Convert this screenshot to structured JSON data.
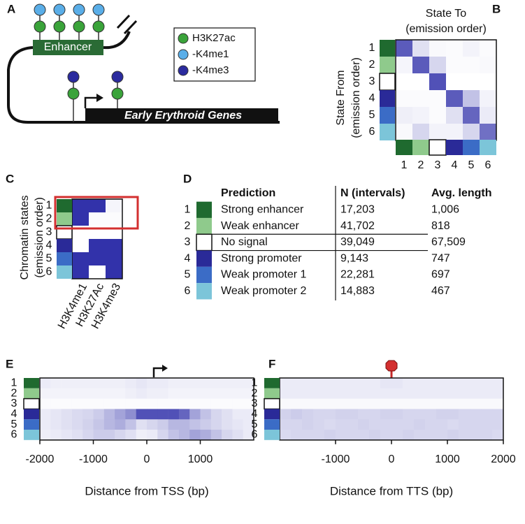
{
  "panel_labels": [
    "A",
    "B",
    "C",
    "D",
    "E",
    "F"
  ],
  "state_colors": [
    "#1f6a2f",
    "#8fca8c",
    "#ffffff",
    "#2a2a98",
    "#3b6cc6",
    "#7cc5d9"
  ],
  "states": [
    "1",
    "2",
    "3",
    "4",
    "5",
    "6"
  ],
  "panel_a": {
    "enhancer": "Enhancer",
    "genes": "Early Erythroid Genes",
    "legend": [
      "H3K27ac",
      "-K4me1",
      "-K4me3"
    ]
  },
  "panel_b": {
    "title": [
      "State To",
      "(emission order)"
    ],
    "ylabel": [
      "State From",
      "(emission order)"
    ],
    "matrix": [
      [
        0.8,
        0.15,
        0.03,
        0.02,
        0.06,
        0.02
      ],
      [
        0.05,
        0.8,
        0.2,
        0.02,
        0.02,
        0.03
      ],
      [
        0.0,
        0.0,
        0.85,
        0.0,
        0.0,
        0.0
      ],
      [
        0.02,
        0.02,
        0.02,
        0.8,
        0.3,
        0.06
      ],
      [
        0.08,
        0.06,
        0.02,
        0.15,
        0.75,
        0.1
      ],
      [
        0.03,
        0.2,
        0.06,
        0.06,
        0.2,
        0.7
      ]
    ]
  },
  "panel_c": {
    "ylabel": [
      "Chromatin states",
      "(emission order)"
    ],
    "marks": [
      "H3K4me1",
      "H3K27Ac",
      "H3K4me3"
    ],
    "matrix": [
      [
        1,
        1,
        0.05
      ],
      [
        1,
        0.02,
        0.02
      ],
      [
        0,
        0,
        0
      ],
      [
        0,
        1,
        1
      ],
      [
        1,
        1,
        1
      ],
      [
        1,
        0,
        1
      ]
    ]
  },
  "panel_d": {
    "headers": [
      "Prediction",
      "N (intervals)",
      "Avg. length"
    ],
    "rows": [
      [
        "Strong enhancer",
        "17,203",
        "1,006"
      ],
      [
        "Weak enhancer",
        "41,702",
        "818"
      ],
      [
        "No signal",
        "39,049",
        "67,509"
      ],
      [
        "Strong promoter",
        "9,143",
        "747"
      ],
      [
        "Weak promoter 1",
        "22,281",
        "697"
      ],
      [
        "Weak promoter 2",
        "14,883",
        "467"
      ]
    ]
  },
  "panel_e": {
    "xlabel": "Distance from TSS (bp)",
    "xlim": [
      -2000,
      2000
    ],
    "xticks": [
      -2000,
      -1000,
      0,
      1000
    ],
    "matrix": [
      [
        0.1,
        0.08,
        0.08,
        0.08,
        0.08,
        0.08,
        0.08,
        0.08,
        0.1,
        0.12,
        0.1,
        0.1,
        0.08,
        0.08,
        0.08,
        0.08,
        0.08,
        0.08,
        0.08,
        0.08
      ],
      [
        0.06,
        0.06,
        0.06,
        0.06,
        0.06,
        0.06,
        0.06,
        0.06,
        0.08,
        0.1,
        0.08,
        0.08,
        0.06,
        0.06,
        0.06,
        0.06,
        0.06,
        0.06,
        0.06,
        0.06
      ],
      [
        0.02,
        0.02,
        0.02,
        0.02,
        0.02,
        0.02,
        0.02,
        0.02,
        0.02,
        0.02,
        0.02,
        0.02,
        0.02,
        0.02,
        0.02,
        0.02,
        0.02,
        0.02,
        0.02,
        0.02
      ],
      [
        0.1,
        0.12,
        0.15,
        0.18,
        0.2,
        0.25,
        0.35,
        0.45,
        0.55,
        0.85,
        0.85,
        0.85,
        0.85,
        0.75,
        0.45,
        0.3,
        0.2,
        0.15,
        0.1,
        0.1
      ],
      [
        0.1,
        0.12,
        0.15,
        0.18,
        0.22,
        0.28,
        0.35,
        0.4,
        0.3,
        0.15,
        0.2,
        0.25,
        0.35,
        0.35,
        0.3,
        0.25,
        0.2,
        0.15,
        0.12,
        0.1
      ],
      [
        0.08,
        0.1,
        0.12,
        0.15,
        0.2,
        0.25,
        0.25,
        0.2,
        0.15,
        0.08,
        0.1,
        0.2,
        0.3,
        0.35,
        0.45,
        0.4,
        0.3,
        0.2,
        0.15,
        0.1
      ]
    ]
  },
  "panel_f": {
    "xlabel": "Distance from TTS (bp)",
    "xlim": [
      -2000,
      2000
    ],
    "xticks": [
      -1000,
      0,
      1000,
      2000
    ],
    "matrix": [
      [
        0.1,
        0.1,
        0.1,
        0.1,
        0.1,
        0.1,
        0.1,
        0.1,
        0.1,
        0.12,
        0.12,
        0.1,
        0.1,
        0.1,
        0.1,
        0.1,
        0.1,
        0.1,
        0.1,
        0.1
      ],
      [
        0.1,
        0.1,
        0.1,
        0.1,
        0.1,
        0.1,
        0.1,
        0.1,
        0.1,
        0.1,
        0.1,
        0.1,
        0.1,
        0.1,
        0.1,
        0.1,
        0.1,
        0.1,
        0.1,
        0.1
      ],
      [
        0.03,
        0.03,
        0.03,
        0.03,
        0.03,
        0.03,
        0.03,
        0.03,
        0.03,
        0.03,
        0.03,
        0.03,
        0.03,
        0.03,
        0.03,
        0.03,
        0.03,
        0.03,
        0.03,
        0.03
      ],
      [
        0.22,
        0.25,
        0.22,
        0.2,
        0.2,
        0.22,
        0.22,
        0.2,
        0.2,
        0.22,
        0.22,
        0.2,
        0.2,
        0.2,
        0.22,
        0.22,
        0.2,
        0.2,
        0.2,
        0.2
      ],
      [
        0.2,
        0.2,
        0.22,
        0.2,
        0.18,
        0.2,
        0.2,
        0.22,
        0.2,
        0.2,
        0.2,
        0.2,
        0.22,
        0.2,
        0.2,
        0.18,
        0.2,
        0.2,
        0.2,
        0.2
      ],
      [
        0.18,
        0.2,
        0.2,
        0.2,
        0.22,
        0.2,
        0.2,
        0.2,
        0.22,
        0.2,
        0.2,
        0.22,
        0.2,
        0.2,
        0.2,
        0.22,
        0.2,
        0.2,
        0.2,
        0.18
      ]
    ]
  }
}
